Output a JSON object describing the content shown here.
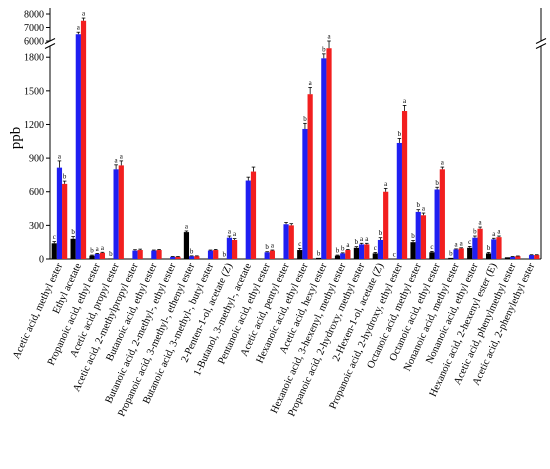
{
  "chart_data": {
    "type": "bar",
    "ylabel": "ppb",
    "xlabel": "",
    "title": "",
    "y_axis_break": true,
    "yticks_lower": [
      0,
      300,
      600,
      900,
      1200,
      1500,
      1800
    ],
    "yticks_upper": [
      6000,
      7000,
      8000
    ],
    "ylim_lower": [
      0,
      1900
    ],
    "ylim_upper": [
      6000,
      8000
    ],
    "categories": [
      "Acetic acid, methyl ester",
      "Ethyl acetate",
      "Propanoic acid, ethyl ester",
      "Acetic acid, propyl ester",
      "Acetic acid, 2-methylpropyl ester",
      "Butanoic acid, ethyl ester",
      "Butanoic acid, 2-methyl-, ethyl ester",
      "Propanoic acid, 3-methyl-, ethenyl ester",
      "Butanoic acid, 3-methyl-, butyl ester",
      "2-Penten-1-ol, acetate (Z)",
      "1-Butanol, 3-methyl-, acetate",
      "Pentanoic acid, ethyl ester",
      "Acetic acid, pentyl ester",
      "Hexanoic acid, ethyl ester",
      "Acetic acid, hexyl ester",
      "Hexanoic acid, 3-hexenyl, methyl ester",
      "Propanoic acid, 2-hydroxy, methyl ester",
      "2-Hexen-1-ol, acetate (Z)",
      "Propanoic acid, 2-hydroxy, ethyl ester",
      "Octanoic acid, methyl ester",
      "Octanoic acid, ethyl ester",
      "Nonanoic acid, methyl ester",
      "Nonanoic acid, ethyl ester",
      "Hexanoic acid, 2-hexenyl ester (E)",
      "Acetic acid, phenylmethyl ester",
      "Acetic acid, 2-phenylethyl ester"
    ],
    "series": [
      {
        "color": "#000000",
        "values": [
          140,
          180,
          30,
          5,
          0,
          0,
          0,
          240,
          0,
          0,
          0,
          0,
          0,
          80,
          10,
          30,
          100,
          50,
          0,
          150,
          60,
          10,
          100,
          50,
          15,
          0
        ],
        "errors": [
          15,
          20,
          5,
          0,
          0,
          0,
          0,
          10,
          0,
          0,
          0,
          0,
          0,
          15,
          0,
          5,
          10,
          8,
          0,
          15,
          8,
          0,
          12,
          8,
          0,
          0
        ],
        "sig": [
          "c",
          "b",
          "b",
          "b",
          "",
          "",
          "",
          "a",
          "",
          "b",
          "",
          "",
          "",
          "c",
          "b",
          "b",
          "b",
          "c",
          "c",
          "b",
          "c",
          "b",
          "c",
          "b",
          "",
          ""
        ]
      },
      {
        "color": "#1f1ff2",
        "values": [
          815,
          6500,
          45,
          800,
          75,
          75,
          20,
          25,
          75,
          190,
          700,
          60,
          310,
          1160,
          1790,
          50,
          130,
          170,
          1035,
          420,
          620,
          85,
          190,
          175,
          20,
          35
        ],
        "errors": [
          60,
          150,
          5,
          40,
          8,
          5,
          2,
          3,
          5,
          15,
          30,
          5,
          15,
          50,
          40,
          5,
          10,
          20,
          40,
          20,
          20,
          5,
          15,
          10,
          2,
          3
        ],
        "sig": [
          "a",
          "a",
          "a",
          "a",
          "",
          "",
          "",
          "b",
          "",
          "a",
          "",
          "b",
          "",
          "b",
          "b",
          "b",
          "a",
          "b",
          "b",
          "b",
          "b",
          "a",
          "b",
          "a",
          "",
          ""
        ]
      },
      {
        "color": "#f21f1f",
        "values": [
          670,
          7500,
          55,
          835,
          80,
          80,
          20,
          25,
          80,
          170,
          780,
          75,
          300,
          1470,
          1880,
          80,
          130,
          600,
          1320,
          390,
          800,
          95,
          270,
          195,
          25,
          35
        ],
        "errors": [
          25,
          200,
          5,
          40,
          8,
          5,
          2,
          3,
          5,
          12,
          40,
          5,
          15,
          60,
          30,
          5,
          10,
          30,
          50,
          20,
          20,
          5,
          15,
          10,
          2,
          3
        ],
        "sig": [
          "b",
          "a",
          "a",
          "a",
          "",
          "",
          "",
          "",
          "",
          "a",
          "",
          "a",
          "",
          "a",
          "a",
          "a",
          "a",
          "a",
          "a",
          "a",
          "a",
          "a",
          "a",
          "a",
          "",
          ""
        ]
      }
    ]
  }
}
